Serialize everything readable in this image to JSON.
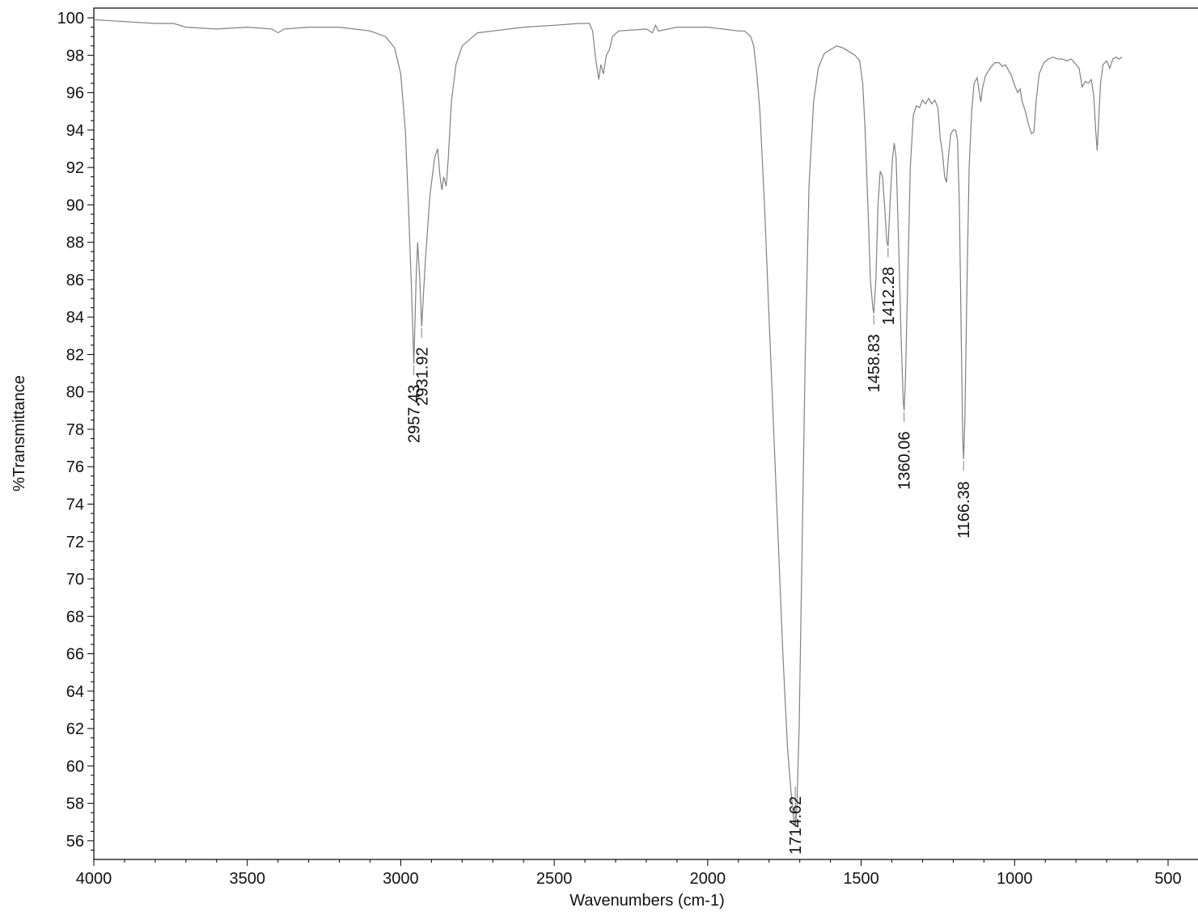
{
  "chart_data": {
    "type": "line",
    "title": "",
    "xlabel": "Wavenumbers (cm-1)",
    "ylabel": "%Transmittance",
    "xlim": [
      4000,
      420
    ],
    "x_reversed": true,
    "ylim": [
      55,
      100.5
    ],
    "grid": false,
    "x_ticks": [
      4000,
      3500,
      3000,
      2500,
      2000,
      1500,
      1000,
      500
    ],
    "x_tick_labels": [
      "4000",
      "3500",
      "3000",
      "2500",
      "2000",
      "1500",
      "1000",
      "500"
    ],
    "y_ticks": [
      56,
      58,
      60,
      62,
      64,
      66,
      68,
      70,
      72,
      74,
      76,
      78,
      80,
      82,
      84,
      86,
      88,
      90,
      92,
      94,
      96,
      98,
      100
    ],
    "y_tick_labels": [
      "56",
      "58",
      "60",
      "62",
      "64",
      "66",
      "68",
      "70",
      "72",
      "74",
      "76",
      "78",
      "80",
      "82",
      "84",
      "86",
      "88",
      "90",
      "92",
      "94",
      "96",
      "98",
      "100"
    ],
    "series": [
      {
        "color": "#808080",
        "points": [
          [
            4000,
            99.9
          ],
          [
            3900,
            99.8
          ],
          [
            3800,
            99.7
          ],
          [
            3740,
            99.7
          ],
          [
            3700,
            99.5
          ],
          [
            3600,
            99.4
          ],
          [
            3500,
            99.5
          ],
          [
            3420,
            99.4
          ],
          [
            3400,
            99.2
          ],
          [
            3380,
            99.4
          ],
          [
            3300,
            99.5
          ],
          [
            3200,
            99.5
          ],
          [
            3100,
            99.3
          ],
          [
            3050,
            99.0
          ],
          [
            3020,
            98.4
          ],
          [
            3000,
            97.0
          ],
          [
            2985,
            94.0
          ],
          [
            2975,
            90.0
          ],
          [
            2965,
            85.5
          ],
          [
            2957.43,
            81.5
          ],
          [
            2950,
            86.0
          ],
          [
            2945,
            88.0
          ],
          [
            2938,
            86.0
          ],
          [
            2931.92,
            83.5
          ],
          [
            2920,
            87.0
          ],
          [
            2905,
            90.5
          ],
          [
            2890,
            92.5
          ],
          [
            2880,
            93.0
          ],
          [
            2872,
            91.5
          ],
          [
            2866,
            90.8
          ],
          [
            2860,
            91.5
          ],
          [
            2852,
            91.0
          ],
          [
            2845,
            92.5
          ],
          [
            2835,
            95.5
          ],
          [
            2820,
            97.5
          ],
          [
            2800,
            98.5
          ],
          [
            2750,
            99.2
          ],
          [
            2700,
            99.3
          ],
          [
            2600,
            99.5
          ],
          [
            2500,
            99.6
          ],
          [
            2420,
            99.7
          ],
          [
            2385,
            99.7
          ],
          [
            2375,
            99.3
          ],
          [
            2365,
            97.8
          ],
          [
            2355,
            96.7
          ],
          [
            2348,
            97.5
          ],
          [
            2340,
            97.0
          ],
          [
            2330,
            98.0
          ],
          [
            2320,
            98.3
          ],
          [
            2310,
            99.0
          ],
          [
            2290,
            99.3
          ],
          [
            2200,
            99.4
          ],
          [
            2180,
            99.2
          ],
          [
            2170,
            99.6
          ],
          [
            2160,
            99.3
          ],
          [
            2100,
            99.5
          ],
          [
            2000,
            99.5
          ],
          [
            1950,
            99.4
          ],
          [
            1900,
            99.3
          ],
          [
            1880,
            99.3
          ],
          [
            1860,
            99.0
          ],
          [
            1850,
            98.5
          ],
          [
            1840,
            97.0
          ],
          [
            1830,
            95.0
          ],
          [
            1815,
            90.0
          ],
          [
            1800,
            84.0
          ],
          [
            1785,
            78.0
          ],
          [
            1770,
            72.0
          ],
          [
            1755,
            66.0
          ],
          [
            1740,
            61.0
          ],
          [
            1728,
            58.5
          ],
          [
            1719,
            57.0
          ],
          [
            1714.62,
            56.8
          ],
          [
            1710,
            57.5
          ],
          [
            1702,
            62.0
          ],
          [
            1692,
            72.0
          ],
          [
            1682,
            82.0
          ],
          [
            1670,
            91.0
          ],
          [
            1655,
            95.5
          ],
          [
            1640,
            97.3
          ],
          [
            1620,
            98.1
          ],
          [
            1600,
            98.3
          ],
          [
            1580,
            98.5
          ],
          [
            1560,
            98.4
          ],
          [
            1540,
            98.2
          ],
          [
            1520,
            98.0
          ],
          [
            1505,
            97.7
          ],
          [
            1495,
            96.5
          ],
          [
            1487,
            94.0
          ],
          [
            1478,
            90.0
          ],
          [
            1470,
            86.0
          ],
          [
            1462,
            84.5
          ],
          [
            1458.83,
            84.2
          ],
          [
            1452,
            86.0
          ],
          [
            1445,
            90.0
          ],
          [
            1438,
            91.8
          ],
          [
            1430,
            91.5
          ],
          [
            1422,
            89.5
          ],
          [
            1416,
            88.0
          ],
          [
            1412.28,
            87.8
          ],
          [
            1406,
            90.0
          ],
          [
            1398,
            92.5
          ],
          [
            1392,
            93.3
          ],
          [
            1386,
            92.5
          ],
          [
            1378,
            88.0
          ],
          [
            1370,
            83.0
          ],
          [
            1363,
            79.5
          ],
          [
            1360.06,
            79.0
          ],
          [
            1356,
            80.5
          ],
          [
            1348,
            86.0
          ],
          [
            1340,
            92.0
          ],
          [
            1330,
            94.8
          ],
          [
            1320,
            95.3
          ],
          [
            1310,
            95.2
          ],
          [
            1300,
            95.6
          ],
          [
            1290,
            95.4
          ],
          [
            1280,
            95.7
          ],
          [
            1270,
            95.4
          ],
          [
            1260,
            95.6
          ],
          [
            1250,
            95.2
          ],
          [
            1242,
            93.5
          ],
          [
            1235,
            92.8
          ],
          [
            1228,
            91.5
          ],
          [
            1222,
            91.2
          ],
          [
            1216,
            92.5
          ],
          [
            1208,
            93.8
          ],
          [
            1200,
            94.0
          ],
          [
            1192,
            94.0
          ],
          [
            1186,
            93.5
          ],
          [
            1180,
            90.0
          ],
          [
            1174,
            83.0
          ],
          [
            1169,
            77.5
          ],
          [
            1166.38,
            76.4
          ],
          [
            1162,
            78.5
          ],
          [
            1155,
            86.0
          ],
          [
            1148,
            92.0
          ],
          [
            1140,
            95.0
          ],
          [
            1132,
            96.5
          ],
          [
            1122,
            96.8
          ],
          [
            1115,
            96.0
          ],
          [
            1110,
            95.5
          ],
          [
            1105,
            96.2
          ],
          [
            1095,
            96.9
          ],
          [
            1080,
            97.3
          ],
          [
            1065,
            97.6
          ],
          [
            1050,
            97.6
          ],
          [
            1040,
            97.4
          ],
          [
            1030,
            97.5
          ],
          [
            1020,
            97.2
          ],
          [
            1010,
            96.9
          ],
          [
            1000,
            96.4
          ],
          [
            990,
            96.0
          ],
          [
            982,
            96.2
          ],
          [
            975,
            95.5
          ],
          [
            965,
            95.0
          ],
          [
            955,
            94.3
          ],
          [
            945,
            93.8
          ],
          [
            937,
            93.9
          ],
          [
            930,
            95.5
          ],
          [
            920,
            97.0
          ],
          [
            905,
            97.6
          ],
          [
            890,
            97.8
          ],
          [
            875,
            97.9
          ],
          [
            860,
            97.8
          ],
          [
            845,
            97.8
          ],
          [
            830,
            97.7
          ],
          [
            815,
            97.8
          ],
          [
            800,
            97.5
          ],
          [
            790,
            97.3
          ],
          [
            780,
            96.3
          ],
          [
            770,
            96.6
          ],
          [
            760,
            96.5
          ],
          [
            750,
            96.7
          ],
          [
            742,
            95.8
          ],
          [
            736,
            94.0
          ],
          [
            731,
            92.9
          ],
          [
            726,
            94.5
          ],
          [
            720,
            96.5
          ],
          [
            712,
            97.5
          ],
          [
            700,
            97.7
          ],
          [
            690,
            97.3
          ],
          [
            680,
            97.8
          ],
          [
            670,
            97.9
          ],
          [
            660,
            97.8
          ],
          [
            650,
            97.9
          ]
        ]
      }
    ],
    "annotations": [
      {
        "x": 2957.43,
        "y": 81.5,
        "label": "2957.43"
      },
      {
        "x": 2931.92,
        "y": 83.5,
        "label": "2931.92"
      },
      {
        "x": 1714.62,
        "y": 56.8,
        "label": "1714.62"
      },
      {
        "x": 1458.83,
        "y": 84.2,
        "label": "1458.83"
      },
      {
        "x": 1412.28,
        "y": 87.8,
        "label": "1412.28"
      },
      {
        "x": 1360.06,
        "y": 79.0,
        "label": "1360.06"
      },
      {
        "x": 1166.38,
        "y": 76.4,
        "label": "1166.38"
      }
    ]
  }
}
